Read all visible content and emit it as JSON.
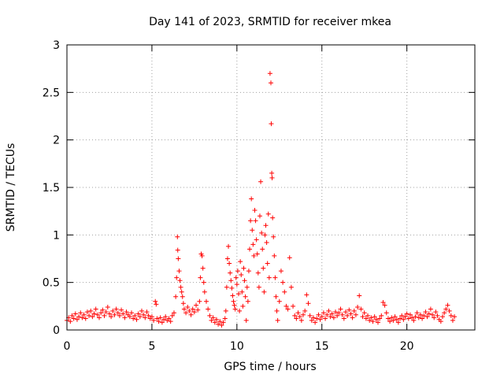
{
  "chart_data": {
    "type": "scatter",
    "title": "Day 141 of 2023, SRMTID for receiver mkea",
    "xlabel": "GPS time / hours",
    "ylabel": "SRMTID / TECUs",
    "xlim": [
      0,
      24
    ],
    "ylim": [
      0,
      3
    ],
    "xticks": [
      0,
      5,
      10,
      15,
      20
    ],
    "yticks": [
      0,
      0.5,
      1,
      1.5,
      2,
      2.5,
      3
    ],
    "xtick_labels": [
      "0",
      "5",
      "10",
      "15",
      "20"
    ],
    "ytick_labels": [
      "0",
      "0.5",
      "1",
      "1.5",
      "2",
      "2.5",
      "3"
    ],
    "grid": true,
    "marker": "+",
    "series": [
      {
        "name": "SRMTID",
        "color": "#ff0000",
        "points": [
          [
            0.0,
            0.1
          ],
          [
            0.1,
            0.13
          ],
          [
            0.2,
            0.09
          ],
          [
            0.3,
            0.15
          ],
          [
            0.4,
            0.12
          ],
          [
            0.5,
            0.17
          ],
          [
            0.6,
            0.11
          ],
          [
            0.7,
            0.14
          ],
          [
            0.8,
            0.18
          ],
          [
            0.9,
            0.13
          ],
          [
            1.0,
            0.16
          ],
          [
            1.1,
            0.12
          ],
          [
            1.2,
            0.19
          ],
          [
            1.3,
            0.15
          ],
          [
            1.4,
            0.2
          ],
          [
            1.5,
            0.14
          ],
          [
            1.6,
            0.17
          ],
          [
            1.7,
            0.22
          ],
          [
            1.8,
            0.16
          ],
          [
            1.9,
            0.13
          ],
          [
            2.0,
            0.18
          ],
          [
            2.1,
            0.21
          ],
          [
            2.2,
            0.15
          ],
          [
            2.3,
            0.19
          ],
          [
            2.4,
            0.24
          ],
          [
            2.5,
            0.17
          ],
          [
            2.6,
            0.14
          ],
          [
            2.7,
            0.2
          ],
          [
            2.8,
            0.16
          ],
          [
            2.9,
            0.22
          ],
          [
            3.0,
            0.18
          ],
          [
            3.1,
            0.15
          ],
          [
            3.2,
            0.21
          ],
          [
            3.3,
            0.17
          ],
          [
            3.4,
            0.13
          ],
          [
            3.5,
            0.19
          ],
          [
            3.6,
            0.16
          ],
          [
            3.7,
            0.14
          ],
          [
            3.8,
            0.18
          ],
          [
            3.9,
            0.12
          ],
          [
            4.0,
            0.15
          ],
          [
            4.1,
            0.11
          ],
          [
            4.2,
            0.17
          ],
          [
            4.3,
            0.14
          ],
          [
            4.4,
            0.2
          ],
          [
            4.5,
            0.16
          ],
          [
            4.6,
            0.13
          ],
          [
            4.7,
            0.19
          ],
          [
            4.8,
            0.15
          ],
          [
            4.9,
            0.12
          ],
          [
            5.0,
            0.14
          ],
          [
            5.1,
            0.1
          ],
          [
            5.2,
            0.3
          ],
          [
            5.25,
            0.27
          ],
          [
            5.3,
            0.12
          ],
          [
            5.4,
            0.09
          ],
          [
            5.5,
            0.13
          ],
          [
            5.6,
            0.08
          ],
          [
            5.7,
            0.11
          ],
          [
            5.8,
            0.14
          ],
          [
            5.9,
            0.1
          ],
          [
            6.0,
            0.12
          ],
          [
            6.1,
            0.09
          ],
          [
            6.2,
            0.15
          ],
          [
            6.3,
            0.18
          ],
          [
            6.4,
            0.35
          ],
          [
            6.45,
            0.55
          ],
          [
            6.5,
            0.98
          ],
          [
            6.52,
            0.84
          ],
          [
            6.55,
            0.75
          ],
          [
            6.6,
            0.62
          ],
          [
            6.65,
            0.52
          ],
          [
            6.7,
            0.45
          ],
          [
            6.75,
            0.4
          ],
          [
            6.8,
            0.35
          ],
          [
            6.85,
            0.28
          ],
          [
            6.9,
            0.22
          ],
          [
            7.0,
            0.18
          ],
          [
            7.1,
            0.24
          ],
          [
            7.2,
            0.2
          ],
          [
            7.3,
            0.16
          ],
          [
            7.4,
            0.22
          ],
          [
            7.5,
            0.19
          ],
          [
            7.6,
            0.26
          ],
          [
            7.7,
            0.21
          ],
          [
            7.8,
            0.3
          ],
          [
            7.85,
            0.55
          ],
          [
            7.9,
            0.8
          ],
          [
            7.95,
            0.78
          ],
          [
            8.0,
            0.65
          ],
          [
            8.05,
            0.5
          ],
          [
            8.1,
            0.4
          ],
          [
            8.2,
            0.3
          ],
          [
            8.3,
            0.22
          ],
          [
            8.4,
            0.15
          ],
          [
            8.5,
            0.1
          ],
          [
            8.6,
            0.13
          ],
          [
            8.7,
            0.08
          ],
          [
            8.8,
            0.11
          ],
          [
            8.9,
            0.06
          ],
          [
            9.0,
            0.09
          ],
          [
            9.1,
            0.05
          ],
          [
            9.2,
            0.08
          ],
          [
            9.3,
            0.12
          ],
          [
            9.35,
            0.2
          ],
          [
            9.4,
            0.45
          ],
          [
            9.45,
            0.75
          ],
          [
            9.5,
            0.88
          ],
          [
            9.55,
            0.7
          ],
          [
            9.6,
            0.6
          ],
          [
            9.65,
            0.52
          ],
          [
            9.7,
            0.44
          ],
          [
            9.75,
            0.36
          ],
          [
            9.8,
            0.3
          ],
          [
            9.85,
            0.26
          ],
          [
            9.9,
            0.22
          ],
          [
            9.95,
            0.55
          ],
          [
            10.0,
            0.48
          ],
          [
            10.05,
            0.62
          ],
          [
            10.1,
            0.38
          ],
          [
            10.15,
            0.2
          ],
          [
            10.2,
            0.72
          ],
          [
            10.25,
            0.58
          ],
          [
            10.3,
            0.4
          ],
          [
            10.35,
            0.25
          ],
          [
            10.4,
            0.65
          ],
          [
            10.45,
            0.52
          ],
          [
            10.5,
            0.35
          ],
          [
            10.55,
            0.1
          ],
          [
            10.6,
            0.45
          ],
          [
            10.65,
            0.3
          ],
          [
            10.7,
            0.62
          ],
          [
            10.75,
            0.85
          ],
          [
            10.8,
            1.15
          ],
          [
            10.85,
            1.38
          ],
          [
            10.9,
            1.05
          ],
          [
            10.95,
            0.9
          ],
          [
            11.0,
            0.78
          ],
          [
            11.05,
            1.26
          ],
          [
            11.1,
            1.15
          ],
          [
            11.15,
            0.95
          ],
          [
            11.2,
            0.8
          ],
          [
            11.25,
            0.6
          ],
          [
            11.3,
            0.45
          ],
          [
            11.35,
            1.2
          ],
          [
            11.4,
            1.56
          ],
          [
            11.45,
            1.02
          ],
          [
            11.5,
            0.85
          ],
          [
            11.55,
            0.65
          ],
          [
            11.6,
            0.4
          ],
          [
            11.65,
            1.0
          ],
          [
            11.7,
            1.1
          ],
          [
            11.75,
            0.92
          ],
          [
            11.8,
            0.7
          ],
          [
            11.85,
            1.22
          ],
          [
            11.9,
            0.55
          ],
          [
            11.95,
            2.7
          ],
          [
            12.0,
            2.6
          ],
          [
            12.02,
            2.17
          ],
          [
            12.05,
            1.65
          ],
          [
            12.07,
            1.6
          ],
          [
            12.1,
            1.18
          ],
          [
            12.15,
            0.98
          ],
          [
            12.2,
            0.78
          ],
          [
            12.25,
            0.55
          ],
          [
            12.3,
            0.35
          ],
          [
            12.35,
            0.2
          ],
          [
            12.4,
            0.1
          ],
          [
            12.5,
            0.3
          ],
          [
            12.6,
            0.62
          ],
          [
            12.7,
            0.5
          ],
          [
            12.8,
            0.4
          ],
          [
            12.9,
            0.25
          ],
          [
            13.0,
            0.22
          ],
          [
            13.1,
            0.76
          ],
          [
            13.2,
            0.45
          ],
          [
            13.3,
            0.25
          ],
          [
            13.4,
            0.15
          ],
          [
            13.5,
            0.12
          ],
          [
            13.6,
            0.18
          ],
          [
            13.7,
            0.14
          ],
          [
            13.8,
            0.1
          ],
          [
            13.9,
            0.16
          ],
          [
            14.0,
            0.2
          ],
          [
            14.1,
            0.37
          ],
          [
            14.2,
            0.28
          ],
          [
            14.3,
            0.15
          ],
          [
            14.4,
            0.1
          ],
          [
            14.5,
            0.13
          ],
          [
            14.6,
            0.08
          ],
          [
            14.7,
            0.12
          ],
          [
            14.8,
            0.16
          ],
          [
            14.9,
            0.11
          ],
          [
            15.0,
            0.14
          ],
          [
            15.1,
            0.18
          ],
          [
            15.2,
            0.12
          ],
          [
            15.3,
            0.16
          ],
          [
            15.4,
            0.2
          ],
          [
            15.5,
            0.14
          ],
          [
            15.6,
            0.17
          ],
          [
            15.7,
            0.13
          ],
          [
            15.8,
            0.19
          ],
          [
            15.9,
            0.15
          ],
          [
            16.0,
            0.18
          ],
          [
            16.1,
            0.22
          ],
          [
            16.2,
            0.16
          ],
          [
            16.3,
            0.12
          ],
          [
            16.4,
            0.19
          ],
          [
            16.5,
            0.15
          ],
          [
            16.6,
            0.21
          ],
          [
            16.7,
            0.17
          ],
          [
            16.8,
            0.13
          ],
          [
            16.9,
            0.2
          ],
          [
            17.0,
            0.16
          ],
          [
            17.1,
            0.24
          ],
          [
            17.2,
            0.36
          ],
          [
            17.3,
            0.22
          ],
          [
            17.4,
            0.14
          ],
          [
            17.5,
            0.18
          ],
          [
            17.6,
            0.12
          ],
          [
            17.7,
            0.15
          ],
          [
            17.8,
            0.1
          ],
          [
            17.9,
            0.13
          ],
          [
            18.0,
            0.09
          ],
          [
            18.1,
            0.14
          ],
          [
            18.2,
            0.11
          ],
          [
            18.3,
            0.08
          ],
          [
            18.4,
            0.12
          ],
          [
            18.5,
            0.15
          ],
          [
            18.6,
            0.29
          ],
          [
            18.7,
            0.26
          ],
          [
            18.8,
            0.18
          ],
          [
            18.9,
            0.12
          ],
          [
            19.0,
            0.09
          ],
          [
            19.1,
            0.13
          ],
          [
            19.2,
            0.1
          ],
          [
            19.3,
            0.14
          ],
          [
            19.4,
            0.11
          ],
          [
            19.5,
            0.08
          ],
          [
            19.6,
            0.12
          ],
          [
            19.7,
            0.15
          ],
          [
            19.8,
            0.11
          ],
          [
            19.9,
            0.14
          ],
          [
            20.0,
            0.17
          ],
          [
            20.1,
            0.12
          ],
          [
            20.2,
            0.16
          ],
          [
            20.3,
            0.13
          ],
          [
            20.4,
            0.1
          ],
          [
            20.5,
            0.14
          ],
          [
            20.6,
            0.18
          ],
          [
            20.7,
            0.13
          ],
          [
            20.8,
            0.16
          ],
          [
            20.9,
            0.12
          ],
          [
            21.0,
            0.15
          ],
          [
            21.1,
            0.19
          ],
          [
            21.2,
            0.14
          ],
          [
            21.3,
            0.17
          ],
          [
            21.4,
            0.22
          ],
          [
            21.5,
            0.16
          ],
          [
            21.6,
            0.13
          ],
          [
            21.7,
            0.19
          ],
          [
            21.8,
            0.15
          ],
          [
            21.9,
            0.11
          ],
          [
            22.0,
            0.09
          ],
          [
            22.1,
            0.14
          ],
          [
            22.2,
            0.18
          ],
          [
            22.3,
            0.22
          ],
          [
            22.4,
            0.26
          ],
          [
            22.5,
            0.2
          ],
          [
            22.6,
            0.15
          ],
          [
            22.7,
            0.1
          ],
          [
            22.8,
            0.14
          ]
        ]
      }
    ]
  }
}
